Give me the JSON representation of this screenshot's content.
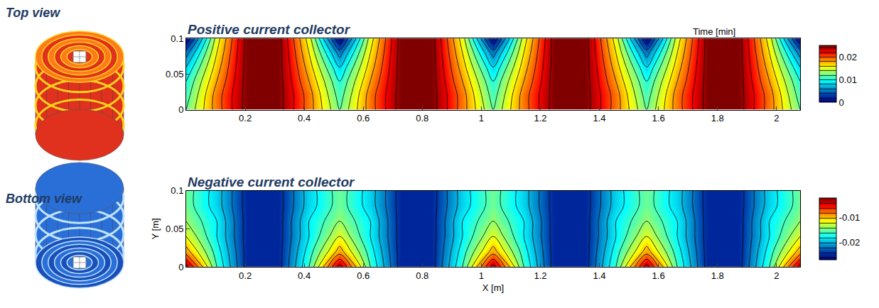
{
  "views": {
    "top": "Top view",
    "bottom": "Bottom view"
  },
  "annotation": "Time [min]",
  "chart_data": [
    {
      "type": "contour",
      "title": "Positive current collector",
      "x": [
        0,
        0.104,
        0.208,
        0.312,
        0.416,
        0.52,
        0.624,
        0.728,
        0.832,
        0.936,
        1.04,
        1.144,
        1.248,
        1.352,
        1.456,
        1.56,
        1.664,
        1.768,
        1.872,
        1.976,
        2.08
      ],
      "y": [
        0,
        0.02,
        0.04,
        0.06,
        0.08,
        0.1
      ],
      "z": [
        [
          0.012,
          0.019,
          0.025,
          0.025,
          0.019,
          0.012,
          0.019,
          0.025,
          0.025,
          0.019,
          0.012,
          0.019,
          0.025,
          0.025,
          0.019,
          0.012,
          0.019,
          0.025,
          0.025,
          0.019,
          0.012
        ],
        [
          0.011,
          0.019,
          0.025,
          0.025,
          0.019,
          0.011,
          0.019,
          0.025,
          0.025,
          0.019,
          0.011,
          0.019,
          0.025,
          0.025,
          0.019,
          0.011,
          0.019,
          0.025,
          0.025,
          0.019,
          0.011
        ],
        [
          0.01,
          0.018,
          0.025,
          0.025,
          0.018,
          0.01,
          0.018,
          0.025,
          0.025,
          0.018,
          0.01,
          0.018,
          0.025,
          0.025,
          0.018,
          0.01,
          0.018,
          0.025,
          0.025,
          0.018,
          0.01
        ],
        [
          0.008,
          0.017,
          0.025,
          0.025,
          0.017,
          0.008,
          0.017,
          0.025,
          0.025,
          0.017,
          0.008,
          0.017,
          0.025,
          0.025,
          0.017,
          0.008,
          0.017,
          0.025,
          0.025,
          0.017,
          0.008
        ],
        [
          0.005,
          0.016,
          0.025,
          0.025,
          0.016,
          0.005,
          0.016,
          0.025,
          0.025,
          0.016,
          0.005,
          0.016,
          0.025,
          0.025,
          0.016,
          0.005,
          0.016,
          0.025,
          0.025,
          0.016,
          0.005
        ],
        [
          0,
          0.015,
          0.025,
          0.025,
          0.015,
          0,
          0.015,
          0.025,
          0.025,
          0.015,
          0,
          0.015,
          0.025,
          0.025,
          0.015,
          0,
          0.015,
          0.025,
          0.025,
          0.015,
          0
        ]
      ],
      "colorbar": {
        "range": [
          0,
          0.025
        ],
        "ticks": [
          0,
          0.01,
          0.02
        ]
      },
      "xlim": [
        0,
        2.08
      ],
      "ylim": [
        0,
        0.1
      ],
      "xticks": [
        0.2,
        0.4,
        0.6,
        0.8,
        1,
        1.2,
        1.4,
        1.6,
        1.8,
        2
      ],
      "yticks": [
        0,
        0.05,
        0.1
      ]
    },
    {
      "type": "contour",
      "title": "Negative current collector",
      "x": [
        0,
        0.104,
        0.208,
        0.312,
        0.416,
        0.52,
        0.624,
        0.728,
        0.832,
        0.936,
        1.04,
        1.144,
        1.248,
        1.352,
        1.456,
        1.56,
        1.664,
        1.768,
        1.872,
        1.976,
        2.08
      ],
      "y": [
        0,
        0.02,
        0.04,
        0.06,
        0.08,
        0.1
      ],
      "z": [
        [
          -0.003,
          -0.016,
          -0.025,
          -0.025,
          -0.016,
          -0.003,
          -0.016,
          -0.025,
          -0.025,
          -0.016,
          -0.003,
          -0.016,
          -0.025,
          -0.025,
          -0.016,
          -0.003,
          -0.016,
          -0.025,
          -0.025,
          -0.016,
          -0.003
        ],
        [
          -0.009,
          -0.017,
          -0.025,
          -0.025,
          -0.017,
          -0.009,
          -0.017,
          -0.025,
          -0.025,
          -0.017,
          -0.009,
          -0.017,
          -0.025,
          -0.025,
          -0.017,
          -0.009,
          -0.017,
          -0.025,
          -0.025,
          -0.017,
          -0.009
        ],
        [
          -0.012,
          -0.018,
          -0.025,
          -0.025,
          -0.018,
          -0.012,
          -0.018,
          -0.025,
          -0.025,
          -0.018,
          -0.012,
          -0.018,
          -0.025,
          -0.025,
          -0.018,
          -0.012,
          -0.018,
          -0.025,
          -0.025,
          -0.018,
          -0.012
        ],
        [
          -0.014,
          -0.018,
          -0.025,
          -0.025,
          -0.018,
          -0.014,
          -0.018,
          -0.025,
          -0.025,
          -0.018,
          -0.014,
          -0.018,
          -0.025,
          -0.025,
          -0.018,
          -0.014,
          -0.018,
          -0.025,
          -0.025,
          -0.018,
          -0.014
        ],
        [
          -0.015,
          -0.019,
          -0.025,
          -0.025,
          -0.019,
          -0.015,
          -0.019,
          -0.025,
          -0.025,
          -0.019,
          -0.015,
          -0.019,
          -0.025,
          -0.025,
          -0.019,
          -0.015,
          -0.019,
          -0.025,
          -0.025,
          -0.019,
          -0.015
        ],
        [
          -0.015,
          -0.019,
          -0.025,
          -0.025,
          -0.019,
          -0.015,
          -0.019,
          -0.025,
          -0.025,
          -0.019,
          -0.015,
          -0.019,
          -0.025,
          -0.025,
          -0.019,
          -0.015,
          -0.019,
          -0.025,
          -0.025,
          -0.019,
          -0.015
        ]
      ],
      "colorbar": {
        "range": [
          -0.027,
          -0.002
        ],
        "ticks": [
          -0.01,
          -0.02
        ]
      },
      "xlim": [
        0,
        2.08
      ],
      "ylim": [
        0,
        0.1
      ],
      "xticks": [
        0.2,
        0.4,
        0.6,
        0.8,
        1,
        1.2,
        1.4,
        1.6,
        1.8,
        2
      ],
      "yticks": [
        0,
        0.05,
        0.1
      ],
      "xlabel": "X [m]",
      "ylabel": "Y [m]"
    }
  ]
}
